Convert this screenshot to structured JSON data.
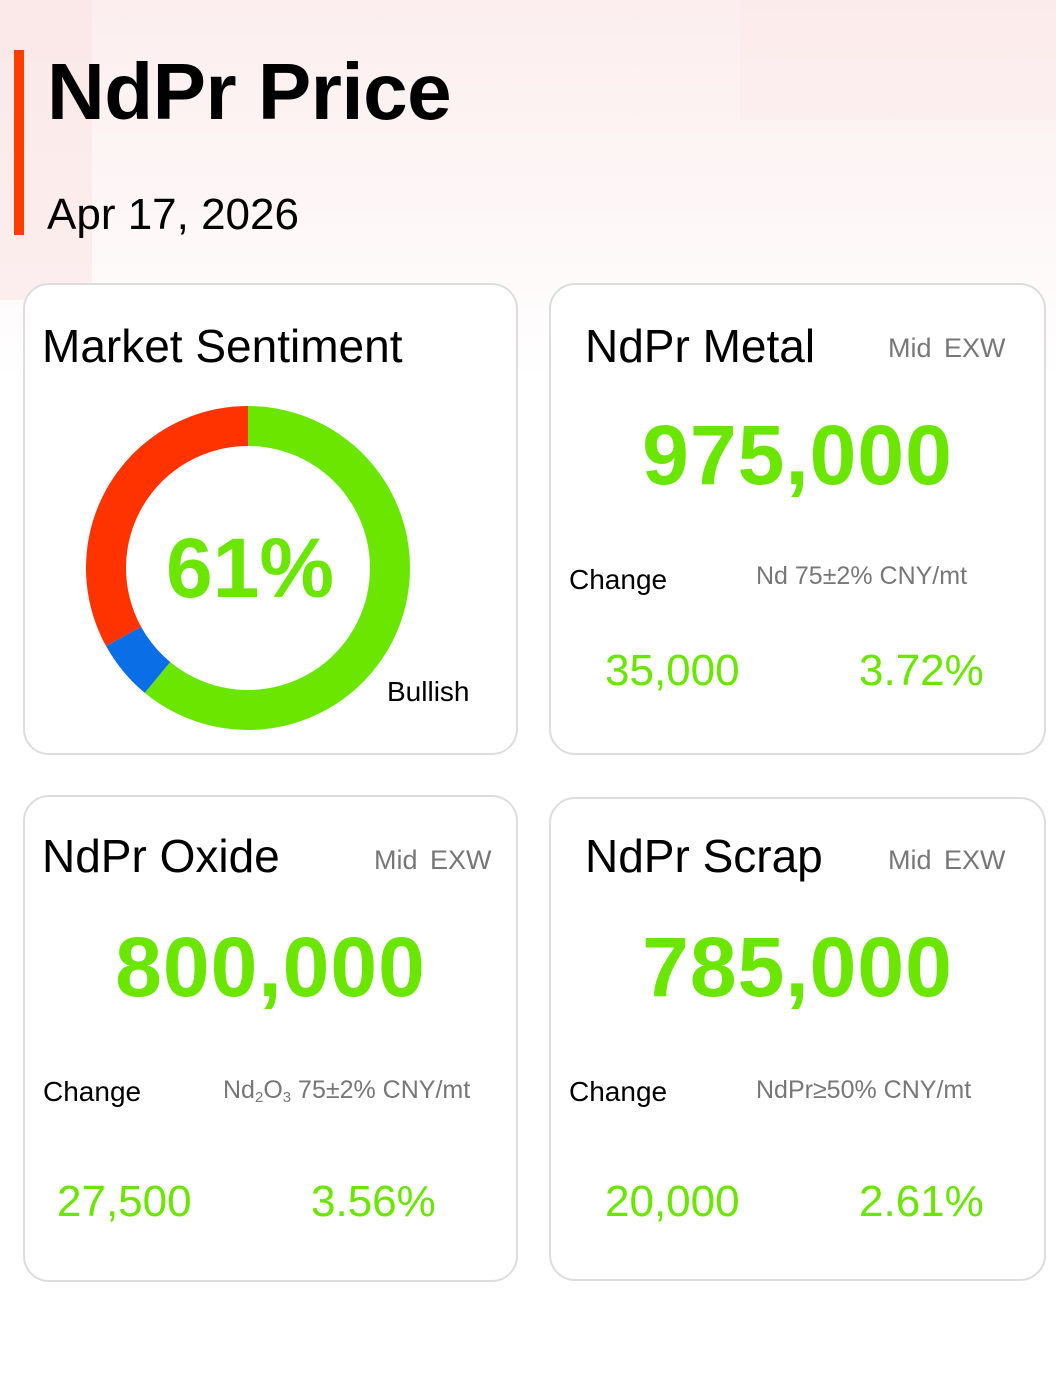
{
  "colors": {
    "accent": "#ff3d00",
    "up": "#6ae600",
    "bearish": "#ff3300",
    "neutral": "#0a6fe6"
  },
  "header": {
    "title": "NdPr Price",
    "date": "Apr 17, 2026"
  },
  "sentiment": {
    "title": "Market Sentiment",
    "percent_label": "61%",
    "caption": "Bullish",
    "segments": [
      {
        "name": "bullish",
        "value": 61,
        "color": "#6ae600"
      },
      {
        "name": "neutral",
        "value": 6,
        "color": "#0a6fe6"
      },
      {
        "name": "bearish",
        "value": 33,
        "color": "#ff3300"
      }
    ]
  },
  "metal": {
    "title": "NdPr Metal",
    "tag_basis": "Mid",
    "tag_terms": "EXW",
    "price": "975,000",
    "change_label": "Change",
    "spec": "Nd 75±2% CNY/mt",
    "change_abs": "35,000",
    "change_pct": "3.72%"
  },
  "oxide": {
    "title": "NdPr Oxide",
    "tag_basis": "Mid",
    "tag_terms": "EXW",
    "price": "800,000",
    "change_label": "Change",
    "spec_formula_nd": "Nd",
    "spec_formula_nd_sub": "2",
    "spec_formula_o": "O",
    "spec_formula_o_sub": "3",
    "spec_rest": " 75±2% CNY/mt",
    "change_abs": "27,500",
    "change_pct": "3.56%"
  },
  "scrap": {
    "title": "NdPr Scrap",
    "tag_basis": "Mid",
    "tag_terms": "EXW",
    "price": "785,000",
    "change_label": "Change",
    "spec": "NdPr≥50% CNY/mt",
    "change_abs": "20,000",
    "change_pct": "2.61%"
  }
}
